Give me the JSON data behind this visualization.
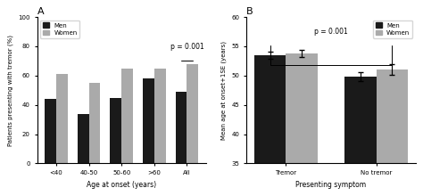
{
  "panel_A": {
    "categories": [
      "<40",
      "40-50",
      "50-60",
      ">60",
      "All"
    ],
    "men_values": [
      44,
      34,
      45,
      58,
      49
    ],
    "women_values": [
      61,
      55,
      65,
      65,
      68
    ],
    "ylabel": "Patients presenting with tremor (%)",
    "xlabel": "Age at onset (years)",
    "title": "A",
    "ylim": [
      0,
      100
    ],
    "yticks": [
      0,
      20,
      40,
      60,
      80,
      100
    ],
    "pvalue": "p = 0.001"
  },
  "panel_B": {
    "categories": [
      "Tremor",
      "No tremor"
    ],
    "men_values": [
      53.5,
      49.8
    ],
    "women_values": [
      53.8,
      51.0
    ],
    "men_errors": [
      0.6,
      0.8
    ],
    "women_errors": [
      0.6,
      0.9
    ],
    "ylabel": "Mean age at onset+1SE (years)",
    "xlabel": "Presenting symptom",
    "title": "B",
    "ylim": [
      35,
      60
    ],
    "yticks": [
      35,
      40,
      45,
      50,
      55,
      60
    ],
    "pvalue": "p = 0.001"
  },
  "men_color": "#1a1a1a",
  "women_color": "#aaaaaa",
  "bar_width": 0.35,
  "legend_labels": [
    "Men",
    "Women"
  ]
}
